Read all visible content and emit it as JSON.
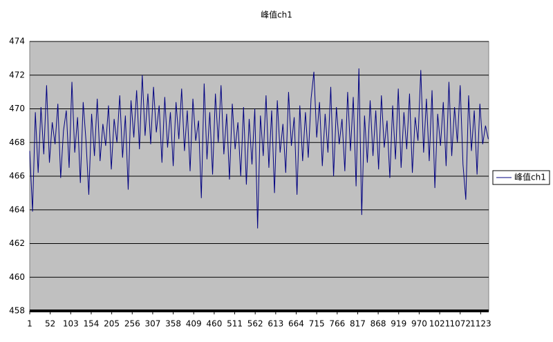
{
  "chart_data": {
    "type": "line",
    "title": "峰值ch1",
    "x": [
      1,
      8,
      15,
      22,
      29,
      36,
      43,
      50,
      57,
      64,
      71,
      78,
      85,
      92,
      99,
      106,
      113,
      120,
      127,
      134,
      141,
      148,
      155,
      162,
      169,
      176,
      183,
      190,
      197,
      204,
      211,
      218,
      225,
      232,
      239,
      246,
      253,
      260,
      267,
      274,
      281,
      288,
      295,
      302,
      309,
      316,
      323,
      330,
      337,
      344,
      351,
      358,
      365,
      372,
      379,
      386,
      393,
      400,
      407,
      414,
      421,
      428,
      435,
      442,
      449,
      456,
      463,
      470,
      477,
      484,
      491,
      498,
      505,
      512,
      519,
      526,
      533,
      540,
      547,
      554,
      561,
      568,
      575,
      582,
      589,
      596,
      603,
      610,
      617,
      624,
      631,
      638,
      645,
      652,
      659,
      666,
      673,
      680,
      687,
      694,
      701,
      708,
      715,
      722,
      729,
      736,
      743,
      750,
      757,
      764,
      771,
      778,
      785,
      792,
      799,
      806,
      813,
      820,
      827,
      834,
      841,
      848,
      855,
      862,
      869,
      876,
      883,
      890,
      897,
      904,
      911,
      918,
      925,
      932,
      939,
      946,
      953,
      960,
      967,
      974,
      981,
      988,
      995,
      1002,
      1009,
      1016,
      1023,
      1030,
      1037,
      1044,
      1051,
      1058,
      1065,
      1072,
      1079,
      1086,
      1093,
      1100,
      1107,
      1114,
      1121,
      1128,
      1135,
      1142
    ],
    "series": [
      {
        "name": "峰值ch1",
        "color": "#000080",
        "values": [
          467.5,
          463.9,
          469.8,
          466.2,
          470.1,
          467.3,
          471.4,
          466.8,
          469.2,
          467.9,
          470.3,
          465.9,
          468.7,
          469.9,
          466.5,
          471.6,
          467.4,
          469.5,
          465.6,
          470.4,
          468.1,
          464.9,
          469.7,
          467.2,
          470.6,
          466.9,
          469.1,
          467.8,
          470.2,
          466.4,
          469.4,
          468.0,
          470.8,
          467.1,
          469.6,
          465.2,
          470.5,
          468.3,
          471.1,
          467.6,
          472.0,
          468.4,
          470.9,
          467.9,
          471.3,
          468.6,
          470.2,
          466.8,
          470.7,
          467.7,
          469.8,
          466.6,
          470.4,
          468.2,
          471.2,
          467.5,
          469.9,
          466.3,
          470.6,
          468.1,
          469.3,
          464.7,
          471.5,
          467.0,
          469.8,
          466.1,
          470.9,
          468.0,
          471.4,
          467.3,
          469.7,
          465.8,
          470.3,
          467.6,
          469.2,
          466.0,
          470.1,
          465.5,
          469.4,
          466.7,
          470.0,
          462.9,
          469.6,
          467.2,
          470.8,
          466.5,
          469.9,
          465.0,
          470.5,
          467.4,
          469.1,
          466.2,
          471.0,
          467.8,
          469.5,
          464.9,
          470.2,
          466.9,
          469.8,
          467.1,
          470.6,
          472.2,
          468.3,
          470.4,
          466.6,
          469.7,
          467.4,
          471.3,
          466.0,
          470.1,
          467.9,
          469.4,
          466.3,
          471.0,
          467.5,
          470.7,
          465.4,
          472.4,
          463.7,
          469.6,
          466.8,
          470.5,
          467.2,
          469.9,
          466.4,
          470.8,
          467.7,
          469.3,
          465.9,
          470.2,
          467.0,
          471.2,
          466.5,
          469.8,
          467.6,
          470.9,
          466.2,
          469.5,
          468.1,
          472.3,
          467.4,
          470.6,
          466.9,
          471.1,
          465.3,
          469.7,
          467.8,
          470.4,
          466.6,
          471.6,
          467.2,
          470.1,
          468.0,
          471.4,
          466.7,
          464.6,
          470.8,
          467.5,
          469.9,
          466.1,
          470.3,
          467.9,
          469.0,
          468.2
        ]
      }
    ],
    "xlim": [
      1,
      1143
    ],
    "xticks": [
      1,
      52,
      103,
      154,
      205,
      256,
      307,
      358,
      409,
      460,
      511,
      562,
      613,
      664,
      715,
      766,
      817,
      868,
      919,
      970,
      1021,
      1072,
      1123
    ],
    "ylim": [
      458,
      474
    ],
    "yticks": [
      458,
      460,
      462,
      464,
      466,
      468,
      470,
      472,
      474
    ],
    "grid": true,
    "legend": "right",
    "background": "#c0c0c0"
  }
}
